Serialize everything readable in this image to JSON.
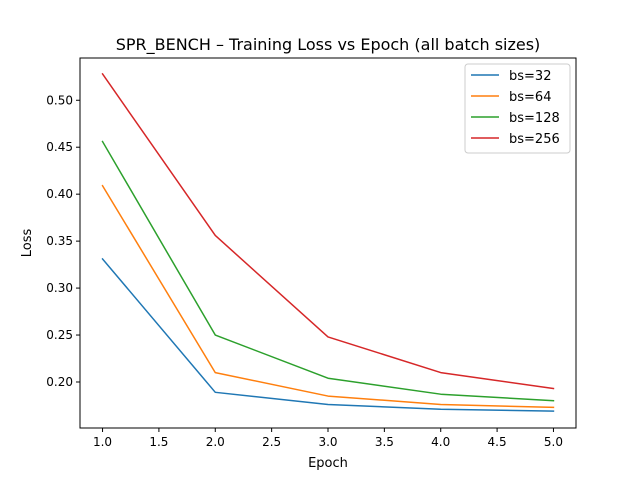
{
  "chart_data": {
    "type": "line",
    "title": "SPR_BENCH – Training Loss vs Epoch (all batch sizes)",
    "xlabel": "Epoch",
    "ylabel": "Loss",
    "x": [
      1,
      2,
      3,
      4,
      5
    ],
    "xlim": [
      0.8,
      5.2
    ],
    "ylim": [
      0.151,
      0.545
    ],
    "xticks": [
      "1.0",
      "1.5",
      "2.0",
      "2.5",
      "3.0",
      "3.5",
      "4.0",
      "4.5",
      "5.0"
    ],
    "yticks": [
      "0.20",
      "0.25",
      "0.30",
      "0.35",
      "0.40",
      "0.45",
      "0.50"
    ],
    "grid": false,
    "legend_position": "top-right",
    "series": [
      {
        "name": "bs=32",
        "color": "#1f77b4",
        "values": [
          0.331,
          0.189,
          0.176,
          0.171,
          0.169
        ]
      },
      {
        "name": "bs=64",
        "color": "#ff7f0e",
        "values": [
          0.409,
          0.21,
          0.185,
          0.176,
          0.173
        ]
      },
      {
        "name": "bs=128",
        "color": "#2ca02c",
        "values": [
          0.456,
          0.25,
          0.204,
          0.187,
          0.18
        ]
      },
      {
        "name": "bs=256",
        "color": "#d62728",
        "values": [
          0.528,
          0.356,
          0.248,
          0.21,
          0.193
        ]
      }
    ]
  }
}
